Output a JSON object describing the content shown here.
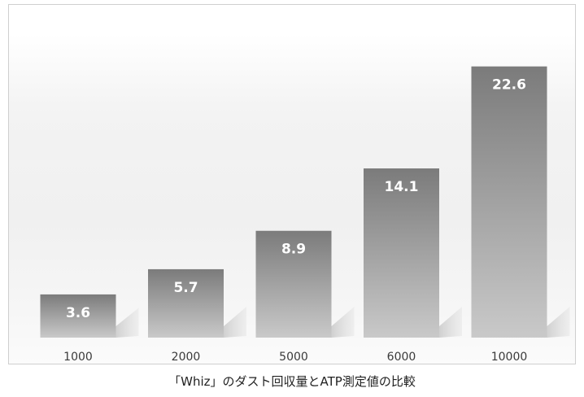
{
  "caption": "「Whiz」のダスト回収量とATP測定値の比較",
  "chart_data": {
    "type": "bar",
    "title": "",
    "xlabel": "",
    "ylabel": "",
    "categories": [
      "1000",
      "2000",
      "5000",
      "6000",
      "10000"
    ],
    "values": [
      3.6,
      5.7,
      8.9,
      14.1,
      22.6
    ],
    "data_labels": [
      "3.6",
      "5.7",
      "8.9",
      "14.1",
      "22.6"
    ],
    "ylim": [
      0,
      25
    ],
    "grid": false,
    "legend": "none",
    "colors": {
      "bar_top": "#7b7b7b",
      "bar_bottom": "#c9c9c9",
      "shadow": "#d8d8d8",
      "label_text": "#ffffff"
    }
  }
}
